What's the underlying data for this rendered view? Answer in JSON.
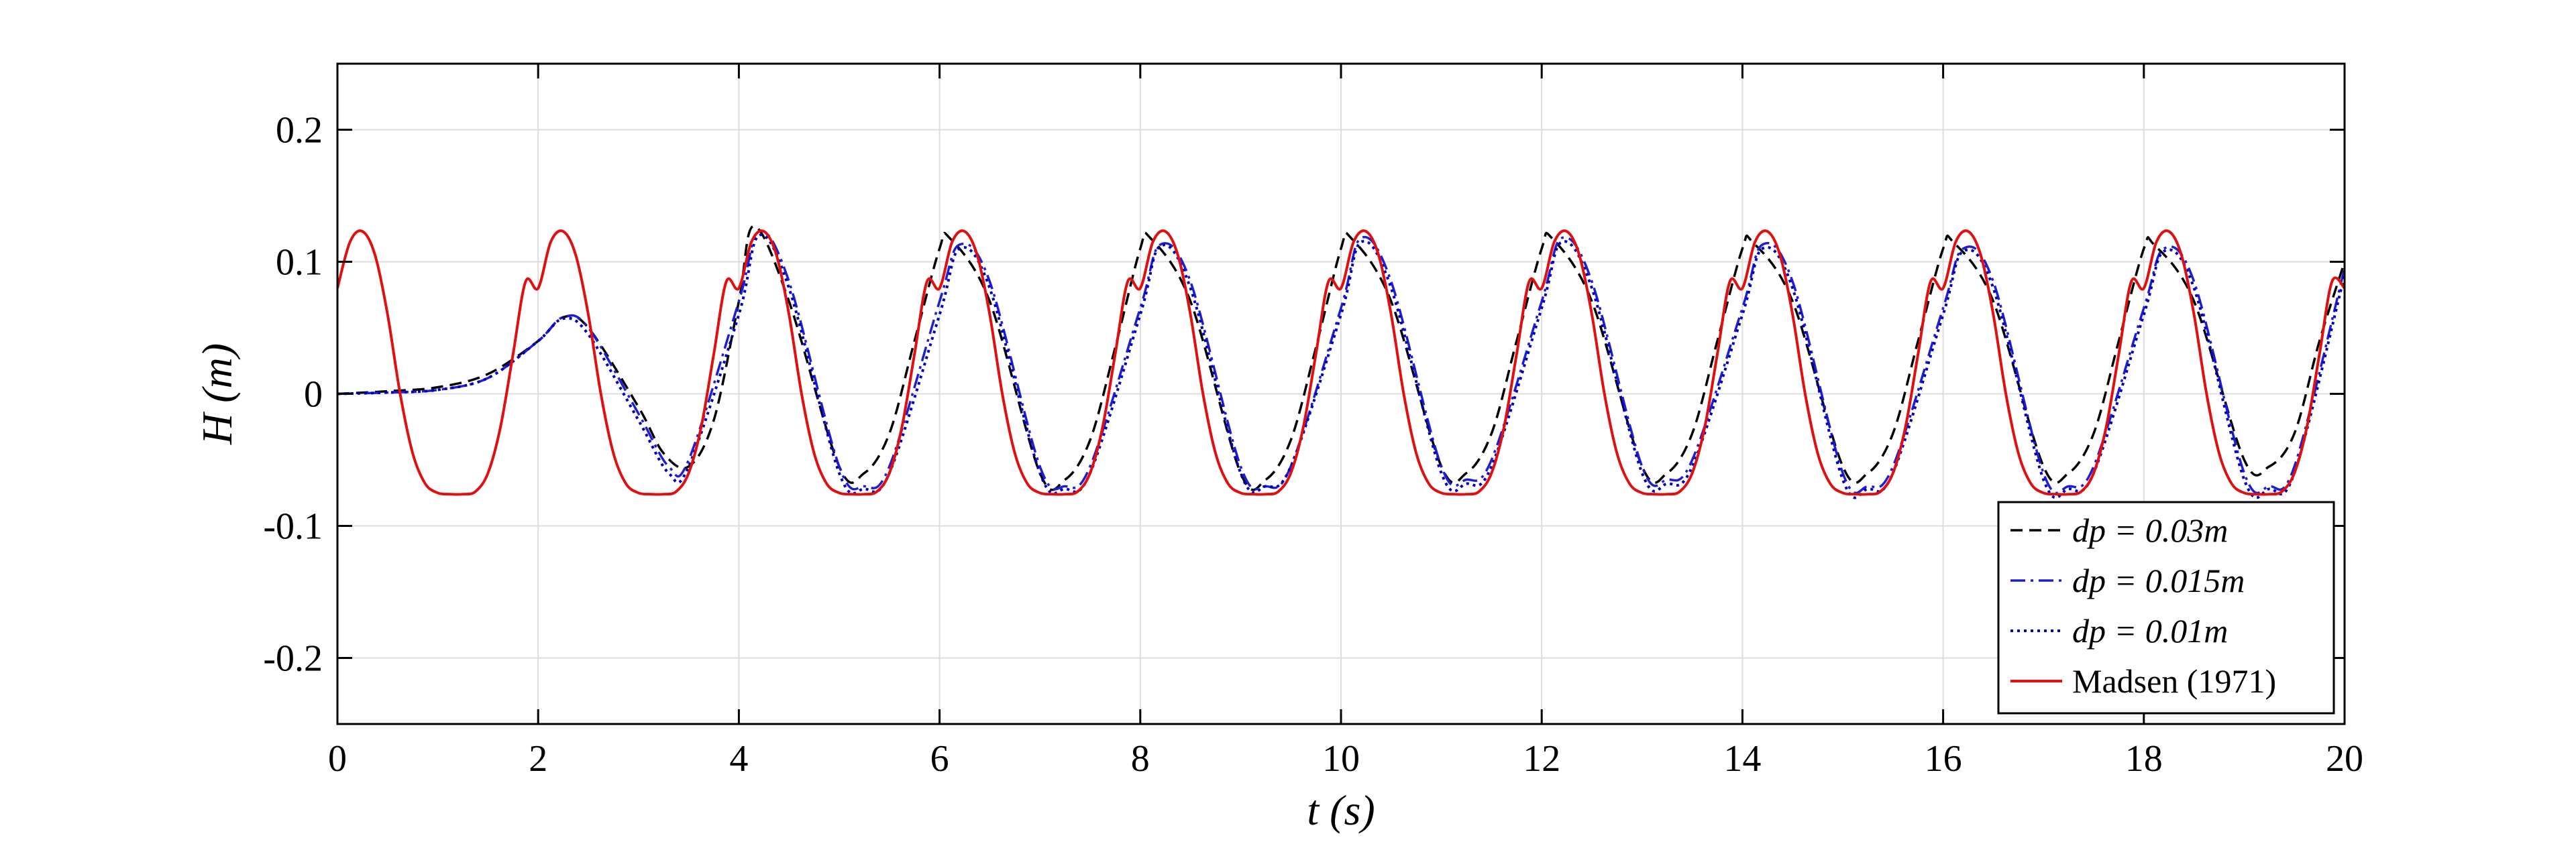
{
  "chart_data": {
    "type": "line",
    "title": "",
    "xlabel": "t (s)",
    "ylabel": "H (m)",
    "xlim": [
      0,
      20
    ],
    "ylim": [
      -0.25,
      0.25
    ],
    "xticks": [
      0,
      2,
      4,
      6,
      8,
      10,
      12,
      14,
      16,
      18,
      20
    ],
    "xtick_labels": [
      "0",
      "2",
      "4",
      "6",
      "8",
      "10",
      "12",
      "14",
      "16",
      "18",
      "20"
    ],
    "yticks": [
      -0.2,
      -0.1,
      0,
      0.1,
      0.2
    ],
    "ytick_labels": [
      "-0.2",
      "-0.1",
      "0",
      "0.1",
      "0.2"
    ],
    "grid": true,
    "legend_position": "bottom-right",
    "series": [
      {
        "name": "dp = 0.03m",
        "color": "#000000",
        "dash": "dashed",
        "x": [
          0,
          0.5,
          1,
          1.5,
          2,
          2.25,
          2.5,
          3,
          3.25,
          3.5,
          3.75,
          4,
          4.15,
          4.5,
          5,
          5.25,
          5.5,
          5.75,
          6,
          6.1,
          6.5,
          7,
          7.25,
          7.5,
          7.75,
          8,
          8.1,
          8.5,
          9,
          9.25,
          9.5,
          9.75,
          10,
          10.1,
          10.5,
          11,
          11.25,
          11.5,
          11.75,
          12,
          12.1,
          12.5,
          13,
          13.25,
          13.5,
          13.75,
          14,
          14.1,
          14.5,
          15,
          15.25,
          15.5,
          15.75,
          16,
          16.1,
          16.5,
          17,
          17.25,
          17.5,
          17.75,
          18,
          18.1,
          18.5,
          19,
          19.25,
          19.5,
          19.75,
          20
        ],
        "y": [
          0,
          0.002,
          0.005,
          0.015,
          0.04,
          0.058,
          0.05,
          -0.01,
          -0.045,
          -0.055,
          -0.02,
          0.07,
          0.127,
          0.07,
          -0.055,
          -0.06,
          -0.03,
          0.04,
          0.11,
          0.118,
          0.07,
          -0.06,
          -0.065,
          -0.035,
          0.035,
          0.11,
          0.118,
          0.07,
          -0.06,
          -0.065,
          -0.035,
          0.035,
          0.11,
          0.118,
          0.07,
          -0.055,
          -0.06,
          -0.03,
          0.04,
          0.11,
          0.118,
          0.07,
          -0.055,
          -0.06,
          -0.03,
          0.04,
          0.11,
          0.115,
          0.07,
          -0.055,
          -0.06,
          -0.03,
          0.04,
          0.11,
          0.115,
          0.07,
          -0.055,
          -0.06,
          -0.03,
          0.04,
          0.11,
          0.113,
          0.07,
          -0.05,
          -0.055,
          -0.03,
          0.04,
          0.1
        ]
      },
      {
        "name": "dp = 0.015m",
        "color": "#1f1fd0",
        "dash": "dashdot",
        "x": [
          0,
          0.5,
          1,
          1.5,
          2,
          2.25,
          2.5,
          3,
          3.3,
          3.5,
          4,
          4.2,
          4.5,
          5,
          5.25,
          5.5,
          6,
          6.2,
          6.5,
          7,
          7.25,
          7.5,
          8,
          8.2,
          8.5,
          9,
          9.25,
          9.5,
          10,
          10.2,
          10.5,
          11,
          11.25,
          11.5,
          12,
          12.2,
          12.5,
          13,
          13.25,
          13.5,
          14,
          14.2,
          14.5,
          15,
          15.25,
          15.5,
          16,
          16.2,
          16.5,
          17,
          17.25,
          17.5,
          18,
          18.2,
          18.5,
          19,
          19.25,
          19.5,
          20
        ],
        "y": [
          0,
          0.001,
          0.003,
          0.012,
          0.04,
          0.058,
          0.05,
          -0.015,
          -0.055,
          -0.05,
          0.07,
          0.123,
          0.085,
          -0.055,
          -0.07,
          -0.055,
          0.07,
          0.113,
          0.085,
          -0.055,
          -0.07,
          -0.055,
          0.065,
          0.113,
          0.085,
          -0.055,
          -0.07,
          -0.055,
          0.065,
          0.118,
          0.085,
          -0.055,
          -0.065,
          -0.05,
          0.07,
          0.118,
          0.085,
          -0.055,
          -0.065,
          -0.05,
          0.065,
          0.113,
          0.085,
          -0.06,
          -0.07,
          -0.055,
          0.065,
          0.11,
          0.085,
          -0.06,
          -0.07,
          -0.055,
          0.065,
          0.11,
          0.085,
          -0.06,
          -0.07,
          -0.055,
          0.095
        ]
      },
      {
        "name": "dp = 0.01m",
        "color": "#0000c0",
        "dash": "dotted",
        "x": [
          0,
          0.5,
          1,
          1.5,
          2,
          2.25,
          2.5,
          3,
          3.3,
          3.5,
          4,
          4.2,
          4.5,
          5,
          5.25,
          5.5,
          6,
          6.2,
          6.5,
          7,
          7.25,
          7.5,
          8,
          8.2,
          8.5,
          9,
          9.25,
          9.5,
          10,
          10.2,
          10.5,
          11,
          11.25,
          11.5,
          12,
          12.2,
          12.5,
          13,
          13.25,
          13.5,
          14,
          14.2,
          14.5,
          15,
          15.25,
          15.5,
          16,
          16.2,
          16.5,
          17,
          17.25,
          17.5,
          18,
          18.2,
          18.5,
          19,
          19.25,
          19.5,
          20
        ],
        "y": [
          0,
          0.001,
          0.003,
          0.012,
          0.04,
          0.057,
          0.045,
          -0.02,
          -0.06,
          -0.055,
          0.06,
          0.12,
          0.08,
          -0.06,
          -0.072,
          -0.06,
          0.06,
          0.11,
          0.08,
          -0.06,
          -0.072,
          -0.06,
          0.06,
          0.112,
          0.08,
          -0.06,
          -0.07,
          -0.055,
          0.06,
          0.115,
          0.08,
          -0.06,
          -0.068,
          -0.055,
          0.065,
          0.115,
          0.08,
          -0.06,
          -0.068,
          -0.055,
          0.06,
          0.11,
          0.08,
          -0.065,
          -0.072,
          -0.06,
          0.06,
          0.108,
          0.08,
          -0.065,
          -0.072,
          -0.06,
          0.06,
          0.108,
          0.08,
          -0.065,
          -0.072,
          -0.06,
          0.09
        ]
      },
      {
        "name": "Madsen (1971)",
        "color": "#e01010",
        "dash": "solid",
        "period": 2,
        "x": [
          0,
          0.125,
          0.25,
          0.375,
          0.5,
          0.625,
          0.75,
          0.875,
          1,
          1.125,
          1.25,
          1.375,
          1.5,
          1.625,
          1.75,
          1.875,
          2,
          2.125,
          2.25,
          2.375,
          2.5,
          2.625,
          2.75,
          2.875,
          3,
          3.125,
          3.25,
          3.375,
          3.5,
          3.625,
          3.75,
          3.875,
          4,
          4.125,
          4.25,
          4.375,
          4.5,
          4.625,
          4.75,
          4.875,
          5,
          5.125,
          5.25,
          5.375,
          5.5,
          5.625,
          5.75,
          5.875,
          6,
          6.125,
          6.25,
          6.375,
          6.5,
          6.625,
          6.75,
          6.875,
          7,
          7.125,
          7.25,
          7.375,
          7.5,
          7.625,
          7.75,
          7.875,
          8,
          8.125,
          8.25,
          8.375,
          8.5,
          8.625,
          8.75,
          8.875,
          9,
          9.125,
          9.25,
          9.375,
          9.5,
          9.625,
          9.75,
          9.875,
          10,
          10.125,
          10.25,
          10.375,
          10.5,
          10.625,
          10.75,
          10.875,
          11,
          11.125,
          11.25,
          11.375,
          11.5,
          11.625,
          11.75,
          11.875,
          12,
          12.125,
          12.25,
          12.375,
          12.5,
          12.625,
          12.75,
          12.875,
          13,
          13.125,
          13.25,
          13.375,
          13.5,
          13.625,
          13.75,
          13.875,
          14,
          14.125,
          14.25,
          14.375,
          14.5,
          14.625,
          14.75,
          14.875,
          15,
          15.125,
          15.25,
          15.375,
          15.5,
          15.625,
          15.75,
          15.875,
          16,
          16.125,
          16.25,
          16.375,
          16.5,
          16.625,
          16.75,
          16.875,
          17,
          17.125,
          17.25,
          17.375,
          17.5,
          17.625,
          17.75,
          17.875,
          18,
          18.125,
          18.25,
          18.375,
          18.5,
          18.625,
          18.75,
          18.875,
          19,
          19.125,
          19.25,
          19.375,
          19.5,
          19.625,
          19.75,
          19.875,
          20
        ],
        "y": [
          0.08,
          0.115,
          0.123,
          0.105,
          0.06,
          0.0,
          -0.045,
          -0.068,
          -0.075,
          -0.076,
          -0.076,
          -0.074,
          -0.06,
          -0.025,
          0.03,
          0.085,
          0.08,
          0.115,
          0.123,
          0.105,
          0.06,
          0.0,
          -0.045,
          -0.068,
          -0.075,
          -0.076,
          -0.076,
          -0.074,
          -0.06,
          -0.025,
          0.03,
          0.085,
          0.08,
          0.115,
          0.123,
          0.105,
          0.06,
          0.0,
          -0.045,
          -0.068,
          -0.075,
          -0.076,
          -0.076,
          -0.074,
          -0.06,
          -0.025,
          0.03,
          0.085,
          0.08,
          0.115,
          0.123,
          0.105,
          0.06,
          0.0,
          -0.045,
          -0.068,
          -0.075,
          -0.076,
          -0.076,
          -0.074,
          -0.06,
          -0.025,
          0.03,
          0.085,
          0.08,
          0.115,
          0.123,
          0.105,
          0.06,
          0.0,
          -0.045,
          -0.068,
          -0.075,
          -0.076,
          -0.076,
          -0.074,
          -0.06,
          -0.025,
          0.03,
          0.085,
          0.08,
          0.115,
          0.123,
          0.105,
          0.06,
          0.0,
          -0.045,
          -0.068,
          -0.075,
          -0.076,
          -0.076,
          -0.074,
          -0.06,
          -0.025,
          0.03,
          0.085,
          0.08,
          0.115,
          0.123,
          0.105,
          0.06,
          0.0,
          -0.045,
          -0.068,
          -0.075,
          -0.076,
          -0.076,
          -0.074,
          -0.06,
          -0.025,
          0.03,
          0.085,
          0.08,
          0.115,
          0.123,
          0.105,
          0.06,
          0.0,
          -0.045,
          -0.068,
          -0.075,
          -0.076,
          -0.076,
          -0.074,
          -0.06,
          -0.025,
          0.03,
          0.085,
          0.08,
          0.115,
          0.123,
          0.105,
          0.06,
          0.0,
          -0.045,
          -0.068,
          -0.075,
          -0.076,
          -0.076,
          -0.074,
          -0.06,
          -0.025,
          0.03,
          0.085,
          0.08,
          0.115,
          0.123,
          0.105,
          0.06,
          0.0,
          -0.045,
          -0.068,
          -0.075,
          -0.076,
          -0.076,
          -0.074,
          -0.06,
          -0.025,
          0.03,
          0.085,
          0.08
        ]
      }
    ]
  }
}
